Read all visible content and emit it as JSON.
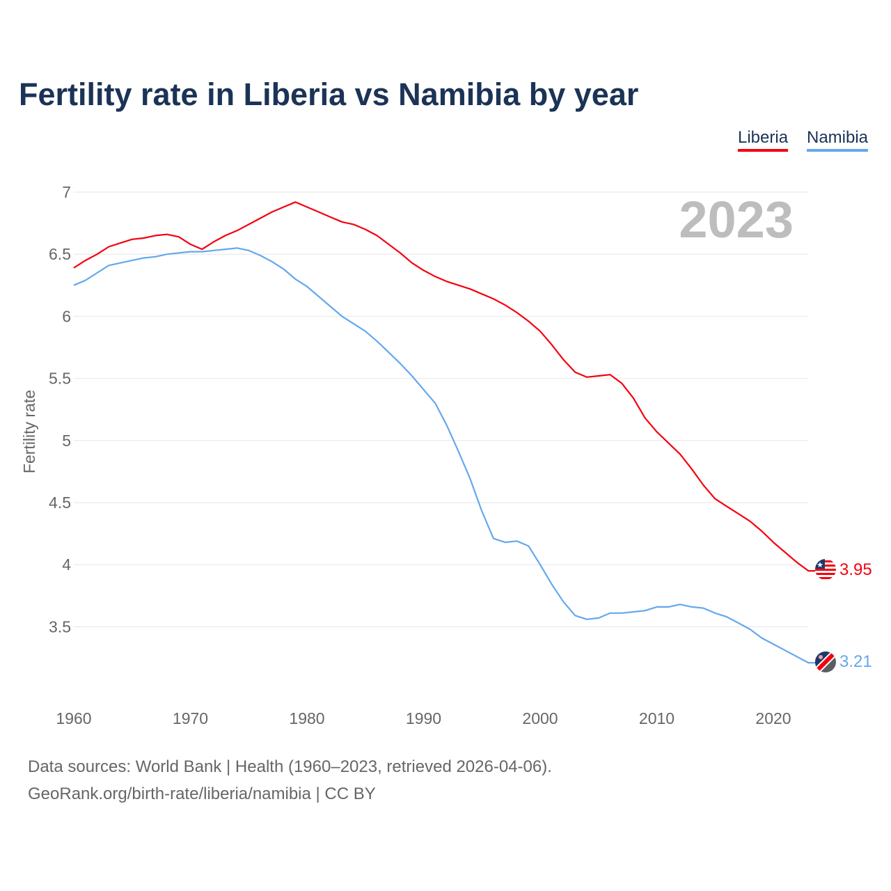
{
  "chart_data": {
    "type": "line",
    "title": "Fertility rate in Liberia vs Namibia by year",
    "xlabel": "",
    "ylabel": "Fertility rate",
    "xlim": [
      1960,
      2023
    ],
    "ylim": [
      3.0,
      7.0
    ],
    "x_ticks": [
      "1960",
      "1970",
      "1980",
      "1990",
      "2000",
      "2010",
      "2020"
    ],
    "y_ticks": [
      "3.5",
      "4",
      "4.5",
      "5",
      "5.5",
      "6",
      "6.5",
      "7"
    ],
    "grid": true,
    "legend_position": "top-right",
    "year_watermark": "2023",
    "x": [
      1960,
      1961,
      1962,
      1963,
      1964,
      1965,
      1966,
      1967,
      1968,
      1969,
      1970,
      1971,
      1972,
      1973,
      1974,
      1975,
      1976,
      1977,
      1978,
      1979,
      1980,
      1981,
      1982,
      1983,
      1984,
      1985,
      1986,
      1987,
      1988,
      1989,
      1990,
      1991,
      1992,
      1993,
      1994,
      1995,
      1996,
      1997,
      1998,
      1999,
      2000,
      2001,
      2002,
      2003,
      2004,
      2005,
      2006,
      2007,
      2008,
      2009,
      2010,
      2011,
      2012,
      2013,
      2014,
      2015,
      2016,
      2017,
      2018,
      2019,
      2020,
      2021,
      2022,
      2023
    ],
    "series": [
      {
        "name": "Liberia",
        "color": "#f5000f",
        "end_label": "3.95",
        "values": [
          6.39,
          6.45,
          6.5,
          6.56,
          6.59,
          6.62,
          6.63,
          6.65,
          6.66,
          6.64,
          6.58,
          6.54,
          6.6,
          6.65,
          6.69,
          6.74,
          6.79,
          6.84,
          6.88,
          6.92,
          6.88,
          6.84,
          6.8,
          6.76,
          6.74,
          6.7,
          6.65,
          6.58,
          6.51,
          6.43,
          6.37,
          6.32,
          6.28,
          6.25,
          6.22,
          6.18,
          6.14,
          6.09,
          6.03,
          5.96,
          5.88,
          5.77,
          5.65,
          5.55,
          5.51,
          5.52,
          5.53,
          5.46,
          5.34,
          5.18,
          5.07,
          4.98,
          4.89,
          4.77,
          4.64,
          4.53,
          4.47,
          4.41,
          4.35,
          4.27,
          4.18,
          4.1,
          4.02,
          3.95
        ]
      },
      {
        "name": "Namibia",
        "color": "#64a8ec",
        "end_label": "3.21",
        "values": [
          6.25,
          6.29,
          6.35,
          6.41,
          6.43,
          6.45,
          6.47,
          6.48,
          6.5,
          6.51,
          6.52,
          6.52,
          6.53,
          6.54,
          6.55,
          6.53,
          6.49,
          6.44,
          6.38,
          6.3,
          6.24,
          6.16,
          6.08,
          6.0,
          5.94,
          5.88,
          5.8,
          5.71,
          5.62,
          5.52,
          5.41,
          5.3,
          5.12,
          4.91,
          4.69,
          4.43,
          4.21,
          4.18,
          4.19,
          4.15,
          4.0,
          3.84,
          3.7,
          3.59,
          3.56,
          3.57,
          3.61,
          3.61,
          3.62,
          3.63,
          3.66,
          3.66,
          3.68,
          3.66,
          3.65,
          3.61,
          3.58,
          3.53,
          3.48,
          3.41,
          3.36,
          3.31,
          3.26,
          3.21
        ]
      }
    ]
  },
  "footer": {
    "line1": "Data sources: World Bank | Health (1960–2023, retrieved 2026-04-06).",
    "line2": "GeoRank.org/birth-rate/liberia/namibia | CC BY"
  }
}
